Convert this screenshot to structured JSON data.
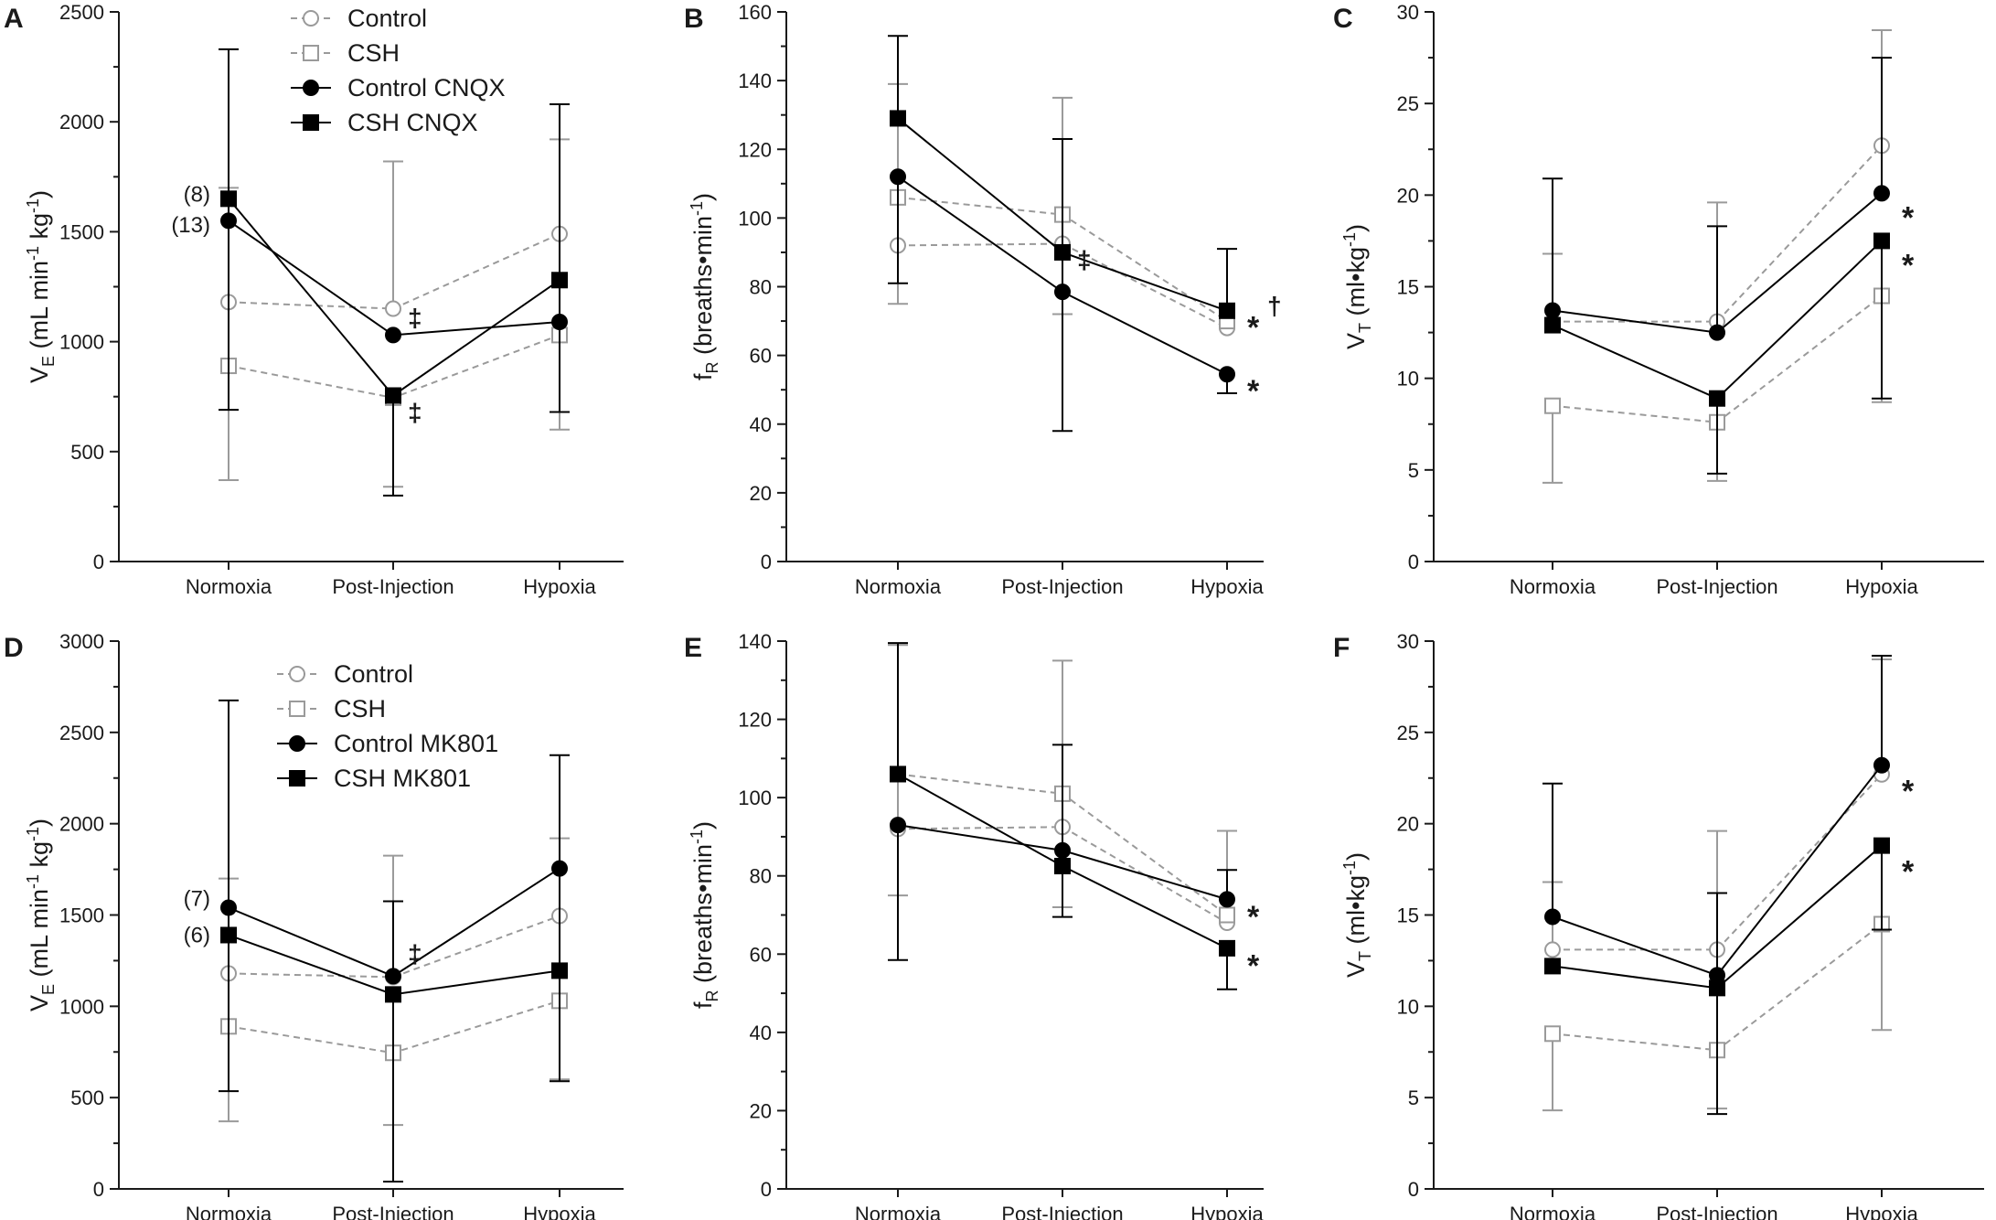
{
  "colors": {
    "black": "#000000",
    "gray": "#9a9a9a",
    "axis": "#1a1a1a"
  },
  "chart_data": [
    {
      "panel": "A",
      "type": "line",
      "categories": [
        "Normoxia",
        "Post-Injection",
        "Hypoxia"
      ],
      "ylim": [
        0,
        2500
      ],
      "yticks": [
        0,
        500,
        1000,
        1500,
        2000,
        2500
      ],
      "ylabel": {
        "base": "V",
        "sub": "E",
        "mid": " (mL min",
        "sup1": "-1",
        "mid2": " kg",
        "sup2": "-1",
        "end": ")"
      },
      "legend": [
        "Control",
        "CSH",
        "Control CNQX",
        "CSH CNQX"
      ],
      "series": [
        {
          "name": "Control",
          "style": "gray-circle",
          "values": [
            1180,
            1150,
            1490
          ],
          "err_hi": [
            1700,
            1820,
            1920
          ],
          "err_lo": [
            null,
            null,
            null
          ]
        },
        {
          "name": "CSH",
          "style": "gray-square",
          "values": [
            890,
            745,
            1030
          ],
          "err_hi": [
            null,
            null,
            null
          ],
          "err_lo": [
            370,
            340,
            600
          ]
        },
        {
          "name": "Control CNQX",
          "style": "black-circle",
          "values": [
            1550,
            1030,
            1090
          ],
          "err_hi": [
            2330,
            null,
            2080
          ],
          "err_lo": [
            690,
            null,
            680
          ]
        },
        {
          "name": "CSH CNQX",
          "style": "black-square",
          "values": [
            1650,
            755,
            1280
          ],
          "err_hi": [
            null,
            null,
            null
          ],
          "err_lo": [
            null,
            300,
            null
          ]
        }
      ],
      "annotations": [
        {
          "text": "(8)",
          "x_index": 0,
          "y": 1670,
          "kind": "note"
        },
        {
          "text": "(13)",
          "x_index": 0,
          "y": 1530,
          "kind": "note"
        },
        {
          "text": "‡",
          "x_index": 1,
          "y": 1110,
          "kind": "dagger"
        },
        {
          "text": "‡",
          "x_index": 1,
          "y": 680,
          "kind": "dagger"
        }
      ]
    },
    {
      "panel": "B",
      "type": "line",
      "categories": [
        "Normoxia",
        "Post-Injection",
        "Hypoxia"
      ],
      "ylim": [
        0,
        160
      ],
      "yticks": [
        0,
        20,
        40,
        60,
        80,
        100,
        120,
        140,
        160
      ],
      "ylabel": {
        "base": "f",
        "sub": "R",
        "mid": " (breaths•min",
        "sup1": "-1",
        "mid2": "",
        "sup2": "",
        "end": ")"
      },
      "legend": [],
      "series": [
        {
          "name": "Control",
          "style": "gray-circle",
          "values": [
            92,
            92.5,
            68
          ],
          "err_hi": [
            139,
            135,
            null
          ],
          "err_lo": [
            75,
            72,
            null
          ]
        },
        {
          "name": "CSH",
          "style": "gray-square",
          "values": [
            106,
            101,
            70
          ],
          "err_hi": [
            null,
            null,
            null
          ],
          "err_lo": [
            null,
            null,
            null
          ]
        },
        {
          "name": "Control CNQX",
          "style": "black-circle",
          "values": [
            112,
            78.5,
            54.5
          ],
          "err_hi": [
            null,
            123,
            null
          ],
          "err_lo": [
            81,
            38,
            49
          ]
        },
        {
          "name": "CSH CNQX",
          "style": "black-square",
          "values": [
            129,
            90,
            73
          ],
          "err_hi": [
            153,
            null,
            91
          ],
          "err_lo": [
            null,
            null,
            null
          ]
        }
      ],
      "annotations": [
        {
          "text": "‡",
          "x_index": 1,
          "y": 88,
          "kind": "dagger"
        },
        {
          "text": "*",
          "x_index": 2,
          "y": 71,
          "kind": "star"
        },
        {
          "text": "†",
          "x_index": 2,
          "y": 74,
          "kind": "dagger-small"
        },
        {
          "text": "*",
          "x_index": 2,
          "y": 52.5,
          "kind": "star"
        }
      ]
    },
    {
      "panel": "C",
      "type": "line",
      "categories": [
        "Normoxia",
        "Post-Injection",
        "Hypoxia"
      ],
      "ylim": [
        0,
        30
      ],
      "yticks": [
        0,
        5,
        10,
        15,
        20,
        25,
        30
      ],
      "ylabel": {
        "base": "V",
        "sub": "T",
        "mid": " (ml•kg",
        "sup1": "-1",
        "mid2": "",
        "sup2": "",
        "end": ")"
      },
      "legend": [],
      "series": [
        {
          "name": "Control",
          "style": "gray-circle",
          "values": [
            13.1,
            13.1,
            22.7
          ],
          "err_hi": [
            16.8,
            19.6,
            29
          ],
          "err_lo": [
            null,
            null,
            null
          ]
        },
        {
          "name": "CSH",
          "style": "gray-square",
          "values": [
            8.5,
            7.6,
            14.5
          ],
          "err_hi": [
            null,
            null,
            null
          ],
          "err_lo": [
            4.3,
            4.4,
            8.7
          ]
        },
        {
          "name": "Control CNQX",
          "style": "black-circle",
          "values": [
            13.7,
            12.5,
            20.1
          ],
          "err_hi": [
            20.9,
            18.3,
            27.5
          ],
          "err_lo": [
            null,
            null,
            null
          ]
        },
        {
          "name": "CSH CNQX",
          "style": "black-square",
          "values": [
            12.9,
            8.9,
            17.5
          ],
          "err_hi": [
            null,
            null,
            null
          ],
          "err_lo": [
            null,
            4.8,
            8.9
          ]
        }
      ],
      "annotations": [
        {
          "text": "*",
          "x_index": 2,
          "y": 19.3,
          "kind": "star"
        },
        {
          "text": "*",
          "x_index": 2,
          "y": 16.7,
          "kind": "star"
        }
      ]
    },
    {
      "panel": "D",
      "type": "line",
      "categories": [
        "Normoxia",
        "Post-Injection",
        "Hypoxia"
      ],
      "ylim": [
        0,
        3000
      ],
      "yticks": [
        0,
        500,
        1000,
        1500,
        2000,
        2500,
        3000
      ],
      "ylabel": {
        "base": "V",
        "sub": "E",
        "mid": " (mL min",
        "sup1": "-1",
        "mid2": " kg",
        "sup2": "-1",
        "end": ")"
      },
      "legend": [
        "Control",
        "CSH",
        "Control MK801",
        "CSH MK801"
      ],
      "series": [
        {
          "name": "Control",
          "style": "gray-circle",
          "values": [
            1180,
            1160,
            1495
          ],
          "err_hi": [
            1700,
            1825,
            1920
          ],
          "err_lo": [
            null,
            null,
            null
          ]
        },
        {
          "name": "CSH",
          "style": "gray-square",
          "values": [
            890,
            745,
            1030
          ],
          "err_hi": [
            null,
            null,
            null
          ],
          "err_lo": [
            370,
            350,
            600
          ]
        },
        {
          "name": "Control MK801",
          "style": "black-circle",
          "values": [
            1540,
            1165,
            1755
          ],
          "err_hi": [
            2675,
            1575,
            2375
          ],
          "err_lo": [
            535,
            null,
            590
          ]
        },
        {
          "name": "CSH MK801",
          "style": "black-square",
          "values": [
            1390,
            1065,
            1195
          ],
          "err_hi": [
            null,
            null,
            null
          ],
          "err_lo": [
            null,
            40,
            null
          ]
        }
      ],
      "annotations": [
        {
          "text": "(7)",
          "x_index": 0,
          "y": 1590,
          "kind": "note"
        },
        {
          "text": "(6)",
          "x_index": 0,
          "y": 1390,
          "kind": "note"
        },
        {
          "text": "‡",
          "x_index": 1,
          "y": 1290,
          "kind": "dagger"
        }
      ]
    },
    {
      "panel": "E",
      "type": "line",
      "categories": [
        "Normoxia",
        "Post-Injection",
        "Hypoxia"
      ],
      "ylim": [
        0,
        140
      ],
      "yticks": [
        0,
        20,
        40,
        60,
        80,
        100,
        120,
        140
      ],
      "ylabel": {
        "base": "f",
        "sub": "R",
        "mid": " (breaths•min",
        "sup1": "-1",
        "mid2": "",
        "sup2": "",
        "end": ")"
      },
      "legend": [],
      "series": [
        {
          "name": "Control",
          "style": "gray-circle",
          "values": [
            92,
            92.5,
            68
          ],
          "err_hi": [
            139,
            135,
            91.5
          ],
          "err_lo": [
            75,
            72,
            null
          ]
        },
        {
          "name": "CSH",
          "style": "gray-square",
          "values": [
            106,
            101,
            70
          ],
          "err_hi": [
            null,
            null,
            null
          ],
          "err_lo": [
            null,
            null,
            null
          ]
        },
        {
          "name": "Control MK801",
          "style": "black-circle",
          "values": [
            93,
            86.5,
            74
          ],
          "err_hi": [
            null,
            113.5,
            81.5
          ],
          "err_lo": [
            58.5,
            null,
            null
          ]
        },
        {
          "name": "CSH MK801",
          "style": "black-square",
          "values": [
            106,
            82.5,
            61.5
          ],
          "err_hi": [
            139.5,
            null,
            null
          ],
          "err_lo": [
            null,
            69.5,
            51
          ]
        }
      ],
      "annotations": [
        {
          "text": "*",
          "x_index": 2,
          "y": 72,
          "kind": "star"
        },
        {
          "text": "*",
          "x_index": 2,
          "y": 59.5,
          "kind": "star"
        }
      ]
    },
    {
      "panel": "F",
      "type": "line",
      "categories": [
        "Normoxia",
        "Post-Injection",
        "Hypoxia"
      ],
      "ylim": [
        0,
        30
      ],
      "yticks": [
        0,
        5,
        10,
        15,
        20,
        25,
        30
      ],
      "ylabel": {
        "base": "V",
        "sub": "T",
        "mid": " (ml•kg",
        "sup1": "-1",
        "mid2": "",
        "sup2": "",
        "end": ")"
      },
      "legend": [],
      "series": [
        {
          "name": "Control",
          "style": "gray-circle",
          "values": [
            13.1,
            13.1,
            22.7
          ],
          "err_hi": [
            16.8,
            19.6,
            29
          ],
          "err_lo": [
            null,
            null,
            null
          ]
        },
        {
          "name": "CSH",
          "style": "gray-square",
          "values": [
            8.5,
            7.6,
            14.5
          ],
          "err_hi": [
            null,
            null,
            null
          ],
          "err_lo": [
            4.3,
            4.4,
            8.7
          ]
        },
        {
          "name": "Control MK801",
          "style": "black-circle",
          "values": [
            14.9,
            11.7,
            23.2
          ],
          "err_hi": [
            22.2,
            16.2,
            29.2
          ],
          "err_lo": [
            null,
            null,
            null
          ]
        },
        {
          "name": "CSH MK801",
          "style": "black-square",
          "values": [
            12.2,
            11,
            18.8
          ],
          "err_hi": [
            null,
            null,
            null
          ],
          "err_lo": [
            null,
            4.1,
            14.2
          ]
        }
      ],
      "annotations": [
        {
          "text": "*",
          "x_index": 2,
          "y": 22.3,
          "kind": "star"
        },
        {
          "text": "*",
          "x_index": 2,
          "y": 17.9,
          "kind": "star"
        }
      ]
    }
  ]
}
